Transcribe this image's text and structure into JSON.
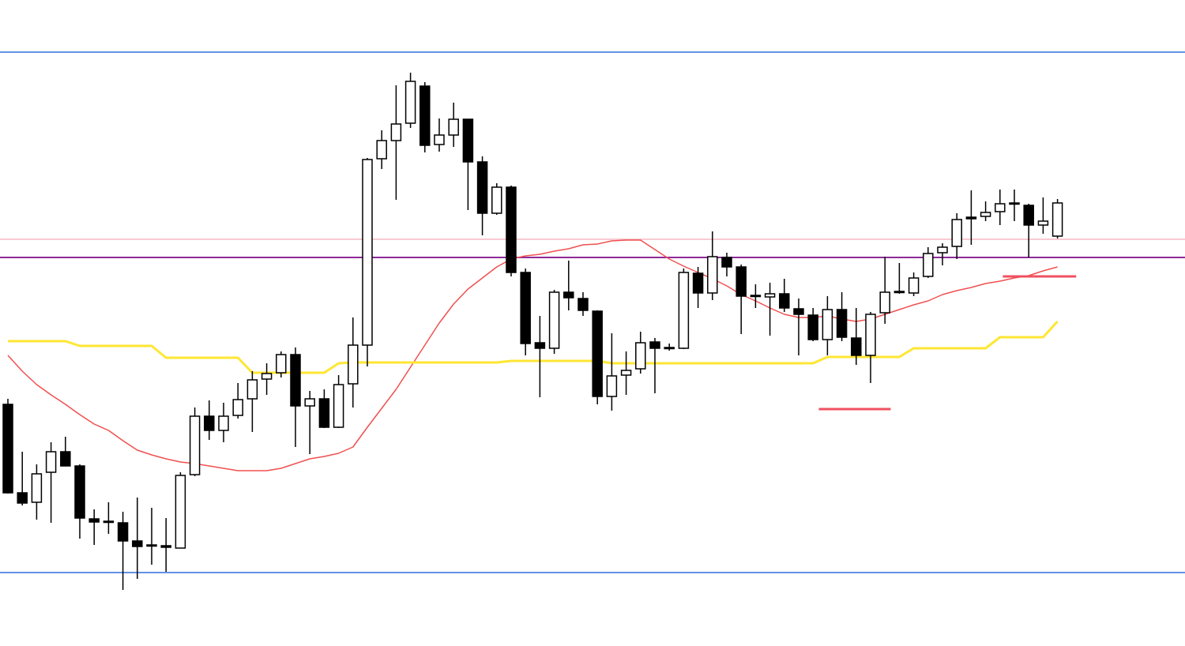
{
  "chart_data": {
    "type": "candlestick",
    "ylim": [
      0,
      818
    ],
    "up_color": "#ffffff",
    "down_color": "#000000",
    "wick_color": "#000000",
    "open": [
      306,
      194,
      182,
      220,
      246,
      228,
      161,
      158,
      156,
      133,
      128,
      127,
      124,
      217,
      291,
      273,
      292,
      313,
      338,
      346,
      369,
      304,
      313,
      277,
      332,
      381,
      617,
      640,
      662,
      709,
      635,
      647,
      667,
      613,
      548,
      581,
      473,
      384,
      377,
      448,
      440,
      424,
      316,
      343,
      351,
      385,
      377,
      377,
      472,
      447,
      492,
      480,
      444,
      442,
      446,
      427,
      419,
      388,
      426,
      390,
      368,
      422,
      449,
      447,
      468,
      498,
      506,
      543,
      544,
      550,
      561,
      558,
      533,
      519
    ],
    "high": [
      313,
      246,
      230,
      258,
      265,
      230,
      173,
      182,
      170,
      188,
      175,
      162,
      220,
      302,
      311,
      308,
      333,
      348,
      358,
      373,
      378,
      323,
      325,
      343,
      416,
      618,
      653,
      710,
      726,
      714,
      668,
      688,
      667,
      620,
      586,
      583,
      478,
      418,
      451,
      488,
      448,
      425,
      396,
      373,
      398,
      390,
      383,
      478,
      480,
      525,
      498,
      483,
      458,
      460,
      465,
      440,
      428,
      443,
      448,
      428,
      423,
      493,
      485,
      473,
      505,
      510,
      548,
      577,
      563,
      578,
      578,
      560,
      568,
      566
    ],
    "low": [
      193,
      178,
      160,
      156,
      228,
      136,
      128,
      142,
      71,
      85,
      103,
      94,
      124,
      215,
      261,
      258,
      288,
      271,
      318,
      340,
      252,
      243,
      276,
      276,
      302,
      354,
      604,
      565,
      656,
      625,
      626,
      632,
      552,
      520,
      546,
      468,
      368,
      315,
      370,
      425,
      418,
      306,
      298,
      318,
      345,
      320,
      374,
      376,
      428,
      438,
      468,
      395,
      428,
      393,
      423,
      368,
      386,
      368,
      386,
      356,
      333,
      408,
      446,
      443,
      466,
      482,
      490,
      508,
      538,
      533,
      538,
      492,
      522,
      516
    ],
    "close": [
      194,
      181,
      218,
      246,
      228,
      162,
      157,
      157,
      133,
      126,
      127,
      125,
      216,
      291,
      273,
      291,
      312,
      337,
      345,
      369,
      304,
      313,
      277,
      331,
      381,
      616,
      640,
      661,
      715,
      634,
      647,
      667,
      613,
      548,
      581,
      473,
      383,
      377,
      448,
      441,
      425,
      316,
      342,
      349,
      384,
      377,
      378,
      473,
      447,
      493,
      480,
      443,
      443,
      446,
      428,
      420,
      388,
      426,
      391,
      368,
      420,
      448,
      448,
      466,
      497,
      505,
      540,
      541,
      549,
      560,
      560,
      533,
      538,
      561
    ],
    "series": [
      {
        "color": "#f05050",
        "width": 1.5,
        "values": [
          368,
          348,
          331,
          318,
          306,
          293,
          281,
          273,
          260,
          248,
          242,
          237,
          233,
          231,
          228,
          225,
          222,
          222,
          222,
          225,
          231,
          237,
          240,
          244,
          252,
          277,
          301,
          325,
          353,
          381,
          409,
          433,
          452,
          466,
          480,
          490,
          494,
          496,
          500,
          503,
          508,
          509,
          513,
          514,
          514,
          502,
          490,
          481,
          473,
          465,
          456,
          445,
          437,
          428,
          420,
          416,
          416,
          418,
          414,
          411,
          414,
          420,
          426,
          432,
          437,
          445,
          450,
          454,
          459,
          462,
          466,
          469,
          475,
          480
        ]
      },
      {
        "color": "#ffe633",
        "width": 3,
        "values": [
          386,
          386,
          386,
          386,
          386,
          380,
          380,
          380,
          380,
          380,
          380,
          365,
          365,
          365,
          365,
          365,
          365,
          346,
          346,
          346,
          346,
          346,
          346,
          358,
          359,
          359,
          359,
          359,
          359,
          359,
          359,
          359,
          359,
          359,
          359,
          361,
          361,
          361,
          361,
          361,
          361,
          361,
          358,
          358,
          358,
          358,
          358,
          358,
          358,
          358,
          358,
          358,
          358,
          358,
          358,
          358,
          358,
          366,
          366,
          366,
          366,
          366,
          366,
          377,
          377,
          377,
          377,
          377,
          377,
          391,
          391,
          391,
          391,
          411
        ]
      }
    ],
    "hlines": [
      {
        "value": 752,
        "color": "#2f6fdc",
        "width": 1.5
      },
      {
        "value": 93,
        "color": "#2f6fdc",
        "width": 1.5
      },
      {
        "value": 515,
        "color": "#f6b8c4",
        "width": 1.5
      },
      {
        "value": 492,
        "color": "#8e2a9a",
        "width": 2
      }
    ],
    "segments": [
      {
        "value": 468,
        "from": 69.2,
        "to": 74.3,
        "color": "#f05060",
        "width": 3
      },
      {
        "value": 300,
        "from": 56.4,
        "to": 61.4,
        "color": "#f05060",
        "width": 3
      }
    ]
  }
}
